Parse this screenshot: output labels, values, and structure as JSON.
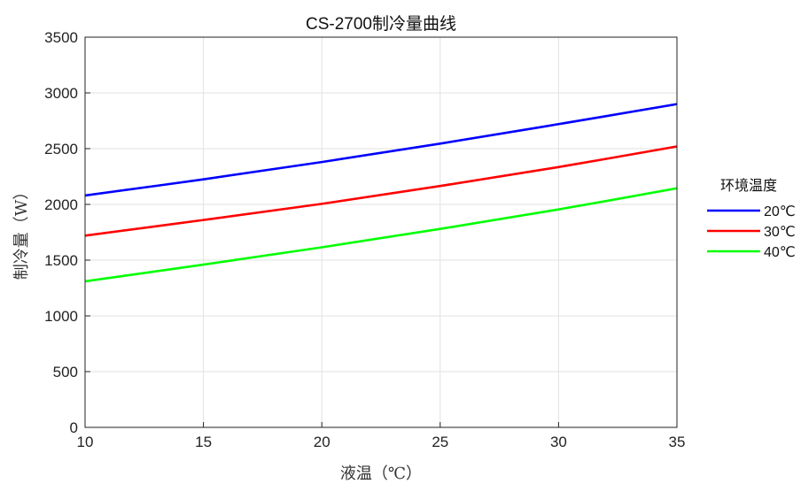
{
  "chart_data": {
    "type": "line",
    "title": "CS-2700制冷量曲线",
    "xlabel": "液温（℃）",
    "ylabel": "制冷量（W）",
    "xlim": [
      10,
      35
    ],
    "ylim": [
      0,
      3500
    ],
    "x_ticks": [
      10,
      15,
      20,
      25,
      30,
      35
    ],
    "y_ticks": [
      0,
      500,
      1000,
      1500,
      2000,
      2500,
      3000,
      3500
    ],
    "grid": true,
    "legend_title": "环境温度",
    "legend_position": "outside-right",
    "x": [
      10,
      15,
      20,
      25,
      30,
      35
    ],
    "series": [
      {
        "name": "20℃",
        "color": "#0000ff",
        "values": [
          2080,
          2225,
          2380,
          2545,
          2720,
          2900
        ]
      },
      {
        "name": "30℃",
        "color": "#ff0000",
        "values": [
          1720,
          1860,
          2005,
          2165,
          2335,
          2520
        ]
      },
      {
        "name": "40℃",
        "color": "#00ff00",
        "values": [
          1310,
          1460,
          1615,
          1780,
          1955,
          2145
        ]
      }
    ]
  }
}
